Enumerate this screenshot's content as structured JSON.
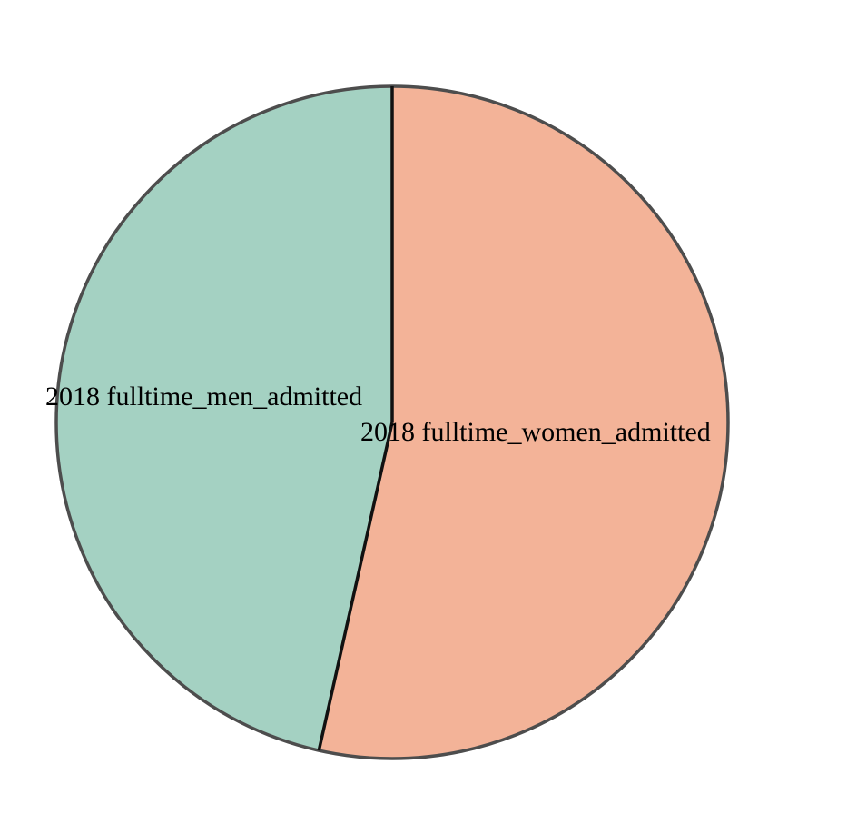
{
  "chart_data": {
    "type": "pie",
    "title": "",
    "slices": [
      {
        "label": "2018 fulltime_women_admitted",
        "value": 53.5,
        "color": "#f3b398"
      },
      {
        "label": "2018 fulltime_men_admitted",
        "value": 46.5,
        "color": "#a4d1c2"
      }
    ],
    "start_angle_deg": 0,
    "direction": "clockwise",
    "outline_color": "#4d4d4d",
    "divider_color": "#111111"
  }
}
